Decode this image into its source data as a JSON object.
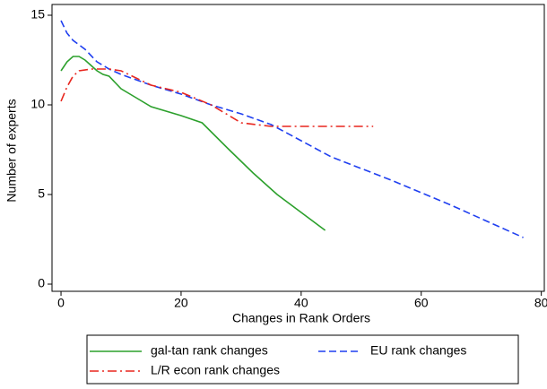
{
  "chart_data": {
    "type": "line",
    "xlabel": "Changes in Rank Orders",
    "ylabel": "Number of experts",
    "xlim": [
      -1.5,
      80.5
    ],
    "ylim": [
      -0.4,
      15.6
    ],
    "xticks": [
      0,
      20,
      40,
      60,
      80
    ],
    "yticks": [
      0,
      5,
      10,
      15
    ],
    "legend": "bottom",
    "series": [
      {
        "name": "gal-tan rank changes",
        "color": "#2ca02c",
        "dash": "solid",
        "x": [
          0,
          1,
          2,
          3,
          4,
          5,
          6,
          7,
          8,
          10,
          12,
          15,
          20,
          23.5,
          28,
          32,
          36,
          40,
          44
        ],
        "values": [
          11.9,
          12.4,
          12.7,
          12.7,
          12.5,
          12.2,
          11.9,
          11.7,
          11.6,
          10.9,
          10.5,
          9.9,
          9.4,
          9.0,
          7.5,
          6.2,
          5.0,
          4.0,
          3.0
        ]
      },
      {
        "name": "EU rank changes",
        "color": "#1f3ff0",
        "dash": "dash",
        "x": [
          0,
          1,
          2,
          4,
          6,
          8,
          10,
          15,
          20,
          25,
          30,
          35,
          40,
          45,
          55,
          65,
          77
        ],
        "values": [
          14.7,
          14.0,
          13.6,
          13.1,
          12.4,
          12.0,
          11.7,
          11.1,
          10.6,
          10.0,
          9.5,
          8.9,
          8.0,
          7.1,
          5.8,
          4.4,
          2.6
        ]
      },
      {
        "name": "L/R econ rank changes",
        "color": "#e8271f",
        "dash": "dashdot",
        "x": [
          0,
          1,
          2,
          3,
          5,
          8,
          10,
          15,
          20,
          25,
          30,
          35,
          40,
          45,
          52
        ],
        "values": [
          10.2,
          11.0,
          11.6,
          11.9,
          12.0,
          12.0,
          11.9,
          11.1,
          10.7,
          10.0,
          9.0,
          8.8,
          8.8,
          8.8,
          8.8
        ]
      }
    ]
  }
}
